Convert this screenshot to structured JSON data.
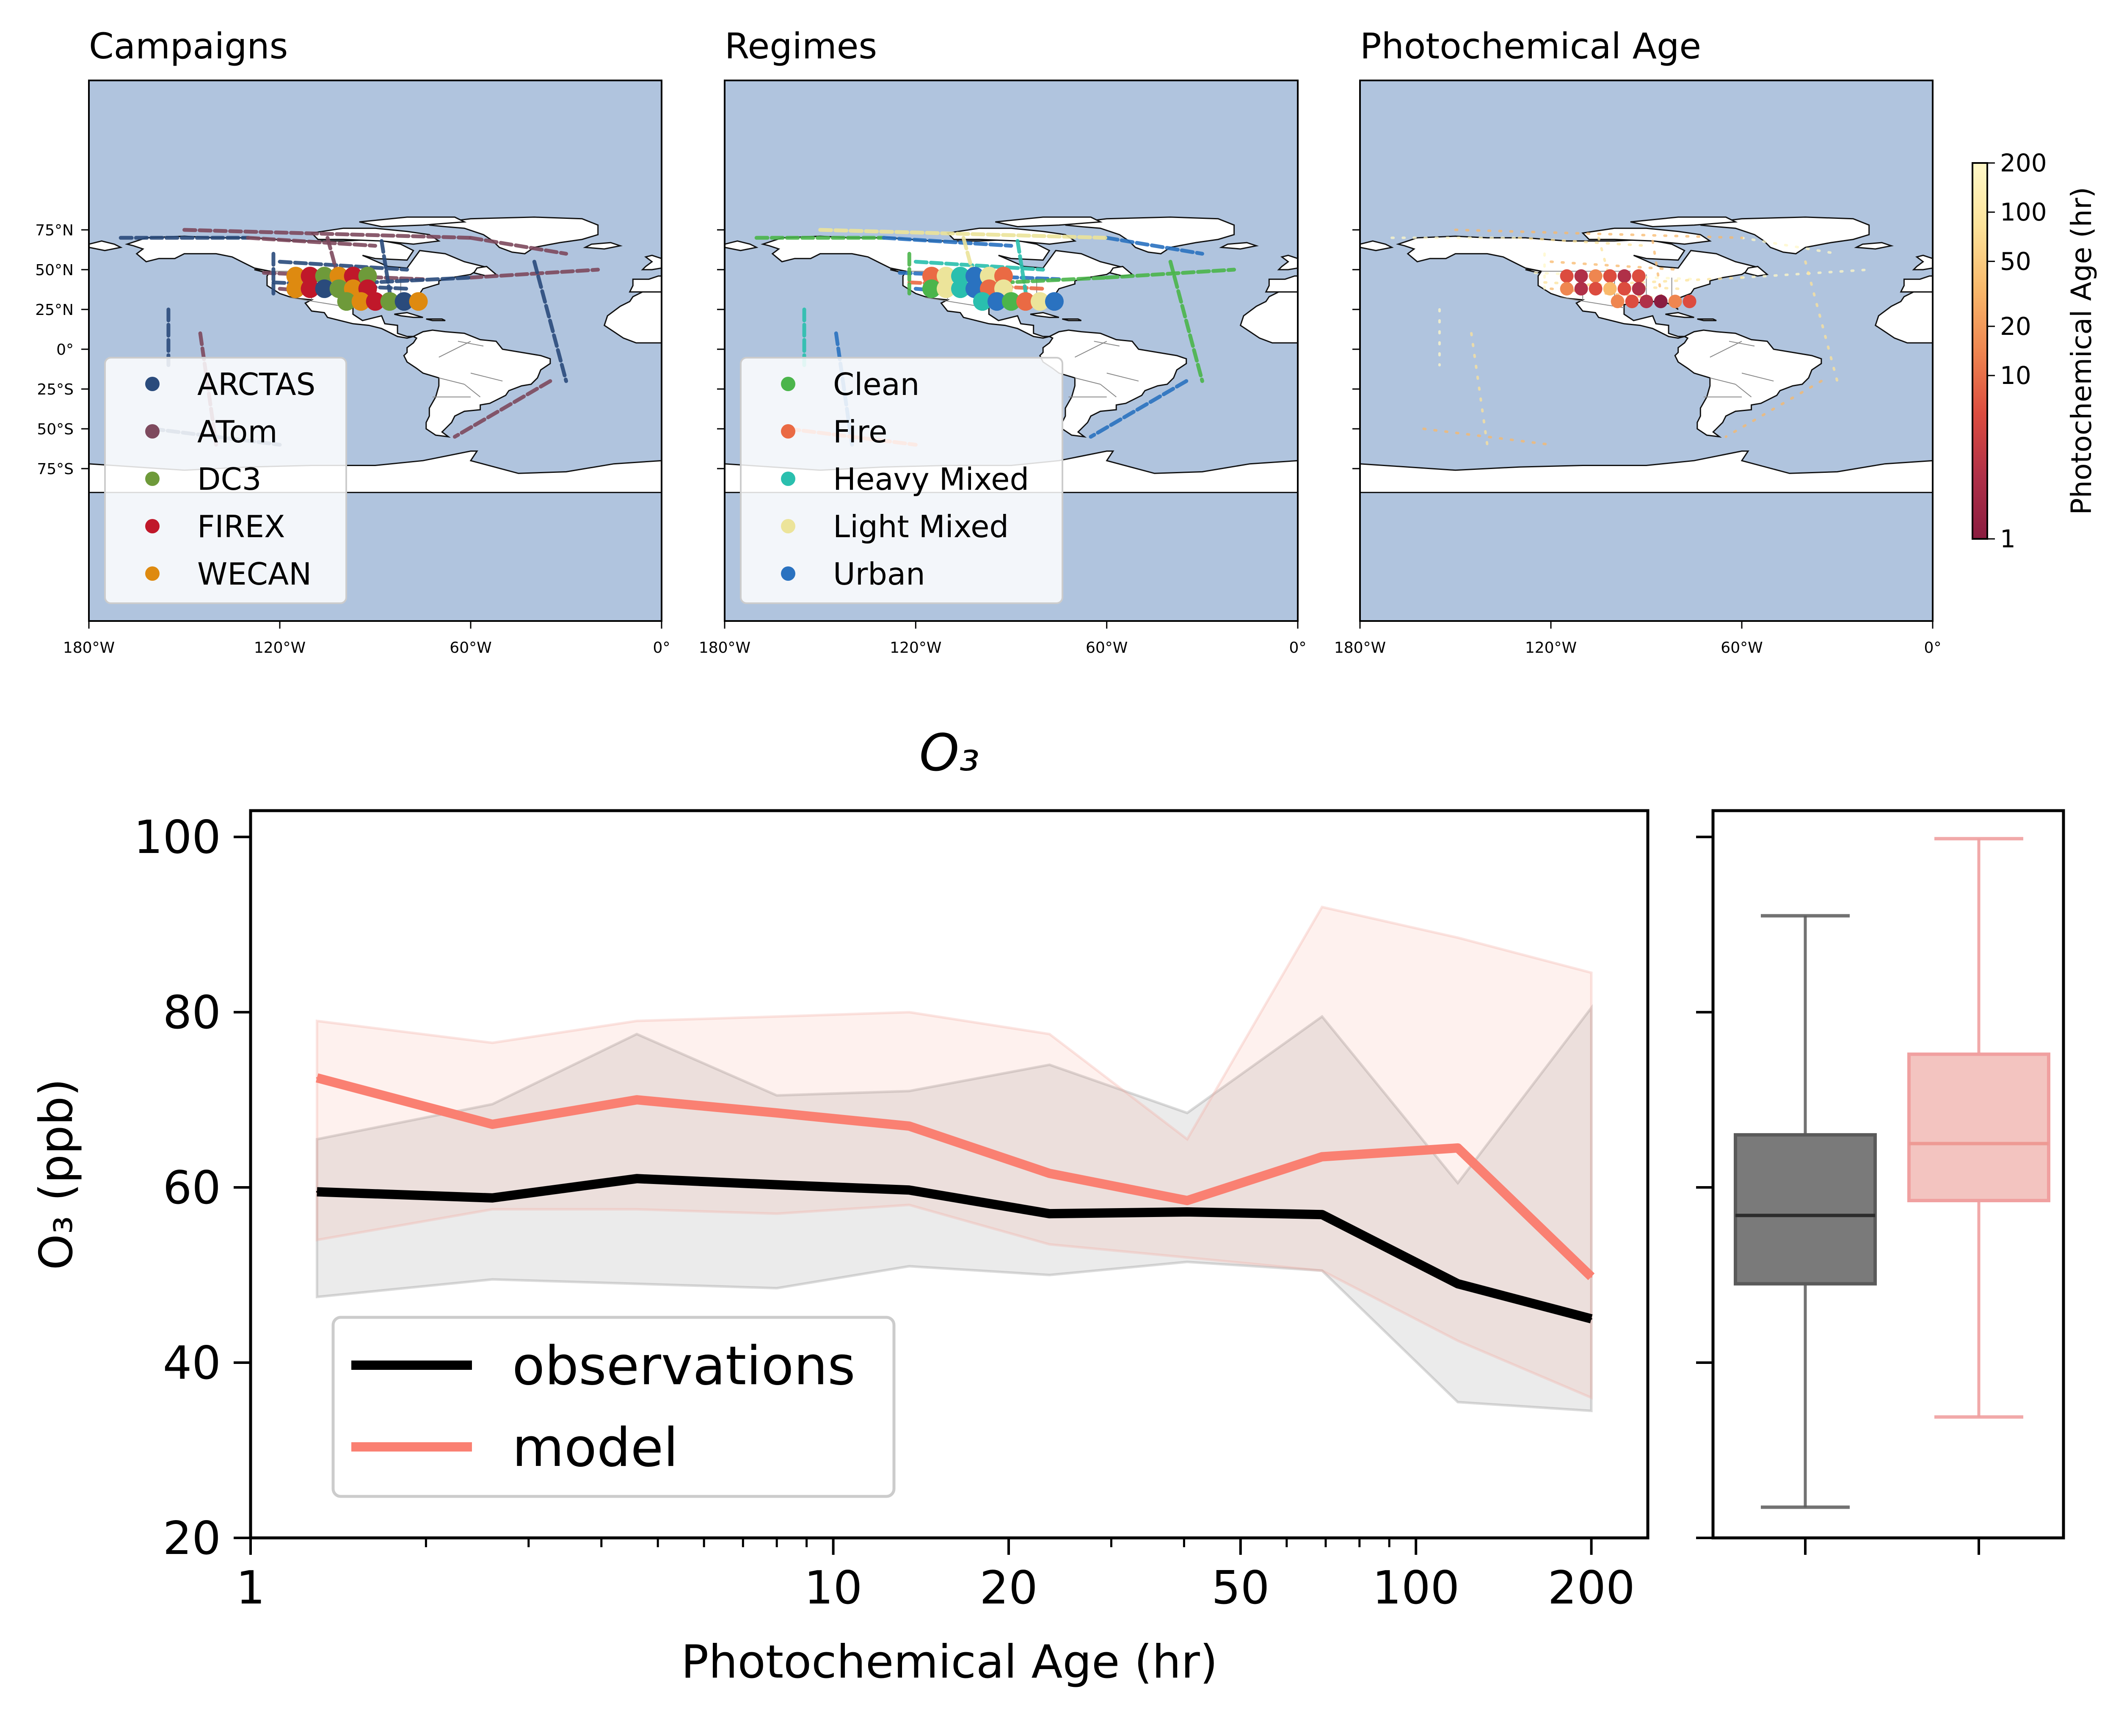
{
  "figure": {
    "maps": [
      {
        "title": "Campaigns",
        "legend": [
          {
            "label": "ARCTAS",
            "color": "#2a4b7c"
          },
          {
            "label": "ATom",
            "color": "#7e4a5e"
          },
          {
            "label": "DC3",
            "color": "#6e9a3a"
          },
          {
            "label": "FIREX",
            "color": "#c0182a"
          },
          {
            "label": "WECAN",
            "color": "#de8a10"
          }
        ]
      },
      {
        "title": "Regimes",
        "legend": [
          {
            "label": "Clean",
            "color": "#4bb54b"
          },
          {
            "label": "Fire",
            "color": "#ea6a44"
          },
          {
            "label": "Heavy Mixed",
            "color": "#2abfae"
          },
          {
            "label": "Light Mixed",
            "color": "#ece49a"
          },
          {
            "label": "Urban",
            "color": "#2a72c0"
          }
        ]
      },
      {
        "title": "Photochemical Age",
        "legend": []
      }
    ],
    "map_axes": {
      "lon_ticks": [
        "180°W",
        "120°W",
        "60°W",
        "0°"
      ],
      "lat_ticks": [
        "75°N",
        "50°N",
        "25°N",
        "0°",
        "25°S",
        "50°S",
        "75°S"
      ]
    },
    "colorbar": {
      "label": "Photochemical Age (hr)",
      "ticks": [
        "200",
        "100",
        "50",
        "20",
        "10",
        "1"
      ],
      "colors": [
        "#fff8c8",
        "#fde39a",
        "#f9b96b",
        "#ef8650",
        "#dc4c3f",
        "#b03048",
        "#8a1c40"
      ]
    }
  },
  "chart_data": {
    "type": "line",
    "title": "O₃",
    "xlabel": "Photochemical Age (hr)",
    "ylabel": "O₃ (ppb)",
    "xscale": "log",
    "xlim": [
      1,
      250
    ],
    "ylim": [
      20,
      103
    ],
    "xticks": [
      "1",
      "10",
      "20",
      "50",
      "100",
      "200"
    ],
    "yticks": [
      "20",
      "40",
      "60",
      "80",
      "100"
    ],
    "x": [
      1.3,
      2.6,
      4.6,
      8.0,
      13.5,
      23.5,
      40.5,
      69.0,
      118.0,
      200.0
    ],
    "series": [
      {
        "name": "observations",
        "color": "#000000",
        "values": [
          59.5,
          58.8,
          61.0,
          60.3,
          59.7,
          57.0,
          57.2,
          56.9,
          49.0,
          45.0
        ],
        "lower": [
          47.5,
          49.5,
          49.0,
          48.5,
          51.0,
          50.0,
          51.5,
          50.5,
          35.5,
          34.5
        ],
        "upper": [
          65.5,
          69.5,
          77.5,
          70.5,
          71.0,
          74.0,
          68.5,
          79.5,
          60.5,
          80.5
        ]
      },
      {
        "name": "model",
        "color": "#fa8072",
        "values": [
          72.5,
          67.2,
          70.0,
          68.5,
          67.0,
          61.6,
          58.5,
          63.5,
          64.5,
          49.8
        ],
        "lower": [
          54.0,
          57.5,
          57.5,
          57.0,
          58.0,
          53.5,
          52.0,
          50.5,
          42.5,
          36.0
        ],
        "upper": [
          79.0,
          76.5,
          79.0,
          79.5,
          80.0,
          77.5,
          65.5,
          92.0,
          88.5,
          84.5
        ]
      }
    ],
    "legend_position": "lower-left",
    "grid": false,
    "boxplots": [
      {
        "name": "observations",
        "color": "#5a5a5a",
        "whisker_low": 23.5,
        "q1": 49.0,
        "median": 56.8,
        "q3": 66.0,
        "whisker_high": 91.0
      },
      {
        "name": "model",
        "color": "#f0a0a0",
        "whisker_low": 33.8,
        "q1": 58.5,
        "median": 65.0,
        "q3": 75.2,
        "whisker_high": 99.8
      }
    ]
  }
}
